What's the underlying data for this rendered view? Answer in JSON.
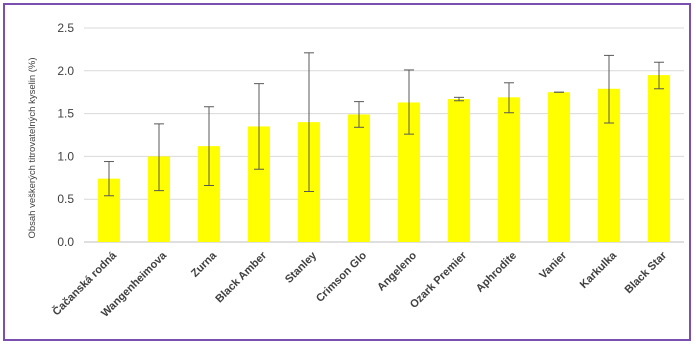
{
  "chart_data": {
    "type": "bar",
    "ylabel": "Obsah veškerých titrovatelných kyselin (%)",
    "xlabel": "",
    "title": "",
    "ylim": [
      0,
      2.5
    ],
    "yticks": [
      "0.0",
      "0.5",
      "1.0",
      "1.5",
      "2.0",
      "2.5"
    ],
    "grid": true,
    "bar_color": "#ffff00",
    "frame_color": "#7b4fb0",
    "categories": [
      "Čačanská rodná",
      "Wangenheimova",
      "Zurna",
      "Black Amber",
      "Stanley",
      "Crimson Glo",
      "Angeleno",
      "Ozark Premier",
      "Aphrodite",
      "Vanier",
      "Karkulka",
      "Black Star"
    ],
    "values": [
      0.74,
      1.0,
      1.12,
      1.35,
      1.4,
      1.49,
      1.63,
      1.67,
      1.69,
      1.75,
      1.79,
      1.95
    ],
    "error_low": [
      0.54,
      0.6,
      0.66,
      0.85,
      0.59,
      1.34,
      1.26,
      1.65,
      1.51,
      1.75,
      1.39,
      1.79
    ],
    "error_high": [
      0.94,
      1.38,
      1.58,
      1.85,
      2.21,
      1.64,
      2.01,
      1.69,
      1.86,
      1.75,
      2.18,
      2.1
    ]
  }
}
